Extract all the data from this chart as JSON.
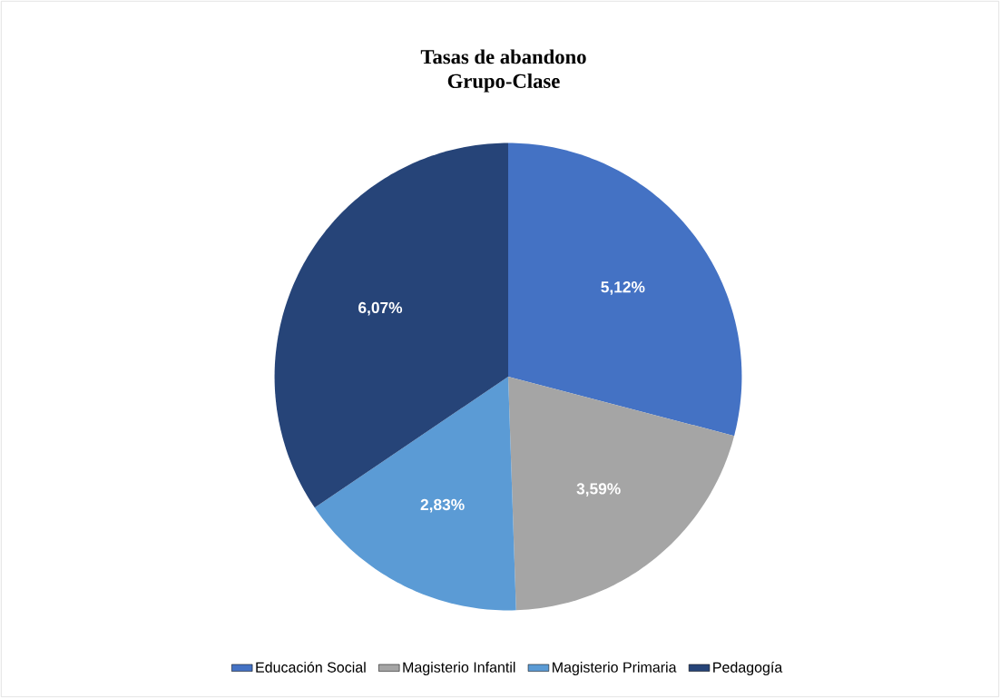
{
  "chart_data": {
    "type": "pie",
    "title": "Tasas de abandono",
    "subtitle": "Grupo-Clase",
    "categories": [
      "Educación Social",
      "Magisterio Infantil",
      "Magisterio Primaria",
      "Pedagogía"
    ],
    "values": [
      5.12,
      3.59,
      2.83,
      6.07
    ],
    "colors": [
      "#4472c4",
      "#a5a5a5",
      "#5b9bd5",
      "#264478"
    ],
    "value_labels": [
      "5,12%",
      "3,59%",
      "2,83%",
      "6,07%"
    ],
    "legend": "bottom"
  }
}
